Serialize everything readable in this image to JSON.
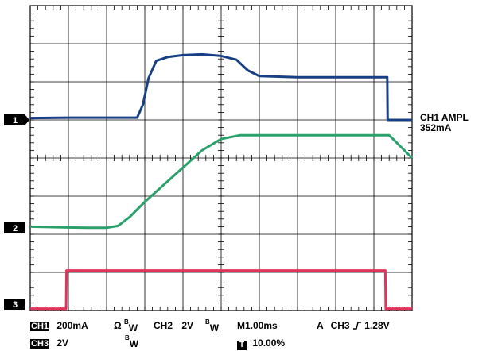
{
  "chart_data": {
    "type": "line",
    "title": "",
    "grid": true,
    "time_per_div_ms": 1.0,
    "divisions": {
      "x": 10,
      "y": 8
    },
    "x_range_ms": [
      0,
      10
    ],
    "series": [
      {
        "name": "CH1",
        "color": "#173f86",
        "units": "mA",
        "scale_per_div": 200,
        "ref_div_from_bottom": 5,
        "points": [
          [
            0,
            0.05
          ],
          [
            1.0,
            0.06
          ],
          [
            2.0,
            0.06
          ],
          [
            2.8,
            0.06
          ],
          [
            2.95,
            0.4
          ],
          [
            3.1,
            1.1
          ],
          [
            3.3,
            1.55
          ],
          [
            3.6,
            1.65
          ],
          [
            4.0,
            1.7
          ],
          [
            4.5,
            1.72
          ],
          [
            5.0,
            1.68
          ],
          [
            5.4,
            1.58
          ],
          [
            5.7,
            1.3
          ],
          [
            6.0,
            1.15
          ],
          [
            7.0,
            1.12
          ],
          [
            8.0,
            1.12
          ],
          [
            9.0,
            1.12
          ],
          [
            9.35,
            1.12
          ],
          [
            9.36,
            0.0
          ],
          [
            10.0,
            0.0
          ]
        ]
      },
      {
        "name": "CH2",
        "color": "#2aa06a",
        "units": "V",
        "scale_per_div": 2,
        "ref_div_from_bottom": 2,
        "points": [
          [
            0,
            0.2
          ],
          [
            1.0,
            0.18
          ],
          [
            1.5,
            0.17
          ],
          [
            2.0,
            0.17
          ],
          [
            2.3,
            0.22
          ],
          [
            2.6,
            0.45
          ],
          [
            3.0,
            0.85
          ],
          [
            3.5,
            1.3
          ],
          [
            4.0,
            1.75
          ],
          [
            4.5,
            2.2
          ],
          [
            5.0,
            2.5
          ],
          [
            5.5,
            2.6
          ],
          [
            6.0,
            2.6
          ],
          [
            7.0,
            2.6
          ],
          [
            8.0,
            2.6
          ],
          [
            9.0,
            2.6
          ],
          [
            9.4,
            2.6
          ],
          [
            10.0,
            2.0
          ]
        ]
      },
      {
        "name": "CH3",
        "color": "#e2335a",
        "units": "V",
        "scale_per_div": 2,
        "ref_div_from_bottom": 0,
        "points": [
          [
            0,
            0.05
          ],
          [
            0.94,
            0.05
          ],
          [
            0.95,
            1.05
          ],
          [
            5.0,
            1.05
          ],
          [
            9.3,
            1.05
          ],
          [
            9.31,
            0.05
          ],
          [
            10.0,
            0.05
          ]
        ]
      }
    ]
  },
  "markers": {
    "ch1": "1",
    "ch2": "2",
    "ch3": "3"
  },
  "measurement": {
    "line1": "CH1 AMPL",
    "line2": "352mA"
  },
  "status": {
    "ch1_tag": "CH1",
    "ch1_scale": "200mA",
    "ch1_coupling": "Ω",
    "bw_sup": "B",
    "bw_sub": "W",
    "ch2_label": "CH2",
    "ch2_scale": "2V",
    "timebase": "M1.00ms",
    "trigger_mode": "A",
    "trigger_source": "CH3",
    "trigger_level": "1.28V",
    "ch3_tag": "CH3",
    "ch3_scale": "2V",
    "trig_pos_icon_text": "T",
    "trig_pos": "10.00%"
  },
  "colors": {
    "grid": "#000000",
    "ch1": "#173f86",
    "ch2": "#2aa06a",
    "ch3": "#e2335a"
  }
}
